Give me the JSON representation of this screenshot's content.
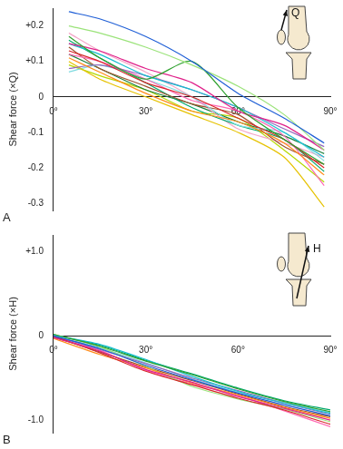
{
  "chart_data": [
    {
      "type": "line",
      "panel_label": "A",
      "force_label": "Q",
      "y_label": "Shear force (×Q)",
      "grid": false,
      "x": [
        5,
        15,
        30,
        45,
        60,
        75,
        88
      ],
      "xlim": [
        0,
        90
      ],
      "xticks": [
        {
          "value": 0,
          "label": "0°"
        },
        {
          "value": 30,
          "label": "30°"
        },
        {
          "value": 60,
          "label": "60°"
        },
        {
          "value": 90,
          "label": "90°"
        }
      ],
      "ylim": [
        -0.32,
        0.25
      ],
      "yticks": [
        {
          "value": 0.2,
          "label": "+0.2"
        },
        {
          "value": 0.1,
          "label": "+0.1"
        },
        0,
        -0.1,
        -0.2,
        -0.3
      ],
      "series": [
        {
          "color": "#1f5fd6",
          "values": [
            0.24,
            0.22,
            0.17,
            0.1,
            0.01,
            -0.06,
            -0.13
          ]
        },
        {
          "color": "#9be37a",
          "values": [
            0.2,
            0.18,
            0.14,
            0.09,
            0.03,
            -0.05,
            -0.15
          ]
        },
        {
          "color": "#2ea02e",
          "values": [
            0.17,
            0.11,
            0.05,
            0.1,
            -0.03,
            -0.12,
            -0.19
          ]
        },
        {
          "color": "#e0218a",
          "values": [
            0.15,
            0.13,
            0.08,
            0.04,
            -0.04,
            -0.08,
            -0.15
          ]
        },
        {
          "color": "#d62728",
          "values": [
            0.13,
            0.1,
            0.04,
            0.0,
            -0.06,
            -0.12,
            -0.2
          ]
        },
        {
          "color": "#ff8c1a",
          "values": [
            0.11,
            0.07,
            0.01,
            -0.04,
            -0.07,
            -0.13,
            -0.22
          ]
        },
        {
          "color": "#17becf",
          "values": [
            0.15,
            0.12,
            0.06,
            0.02,
            -0.03,
            -0.1,
            -0.17
          ]
        },
        {
          "color": "#9467bd",
          "values": [
            0.08,
            0.09,
            0.06,
            0.02,
            -0.03,
            -0.09,
            -0.14
          ]
        },
        {
          "color": "#ff69b4",
          "values": [
            0.12,
            0.1,
            0.05,
            -0.01,
            -0.04,
            -0.11,
            -0.25
          ]
        },
        {
          "color": "#e6c200",
          "values": [
            0.1,
            0.05,
            0.0,
            -0.05,
            -0.1,
            -0.17,
            -0.31
          ]
        },
        {
          "color": "#7fdbe0",
          "values": [
            0.07,
            0.09,
            0.05,
            0.0,
            -0.08,
            -0.1,
            -0.18
          ]
        },
        {
          "color": "#a0522d",
          "values": [
            0.14,
            0.08,
            0.03,
            -0.02,
            -0.05,
            -0.14,
            -0.19
          ]
        },
        {
          "color": "#00a86b",
          "values": [
            0.16,
            0.11,
            0.04,
            -0.03,
            -0.08,
            -0.12,
            -0.21
          ]
        },
        {
          "color": "#f4a6c8",
          "values": [
            0.18,
            0.13,
            0.07,
            0.0,
            -0.09,
            -0.13,
            -0.17
          ]
        },
        {
          "color": "#1b7f3b",
          "values": [
            0.12,
            0.08,
            0.02,
            -0.02,
            -0.07,
            -0.11,
            -0.16
          ]
        },
        {
          "color": "#b5d800",
          "values": [
            0.09,
            0.06,
            0.02,
            -0.04,
            -0.06,
            -0.15,
            -0.24
          ]
        }
      ]
    },
    {
      "type": "line",
      "panel_label": "B",
      "force_label": "H",
      "y_label": "Shear force (×H)",
      "grid": false,
      "x": [
        0,
        15,
        30,
        45,
        60,
        75,
        90
      ],
      "xlim": [
        0,
        90
      ],
      "xticks": [
        {
          "value": 0,
          "label": "0°"
        },
        {
          "value": 30,
          "label": "30°"
        },
        {
          "value": 60,
          "label": "60°"
        },
        {
          "value": 90,
          "label": "90°"
        }
      ],
      "ylim": [
        -1.15,
        1.2
      ],
      "yticks": [
        {
          "value": 1.0,
          "label": "+1.0"
        },
        0,
        {
          "value": -1.0,
          "label": "-1.0"
        }
      ],
      "series": [
        {
          "color": "#1f5fd6",
          "values": [
            0.0,
            -0.15,
            -0.35,
            -0.52,
            -0.68,
            -0.82,
            -0.95
          ]
        },
        {
          "color": "#2ea02e",
          "values": [
            0.02,
            -0.12,
            -0.3,
            -0.46,
            -0.63,
            -0.78,
            -0.9
          ]
        },
        {
          "color": "#e0218a",
          "values": [
            -0.02,
            -0.18,
            -0.4,
            -0.55,
            -0.72,
            -0.86,
            -1.0
          ]
        },
        {
          "color": "#d62728",
          "values": [
            0.0,
            -0.2,
            -0.42,
            -0.58,
            -0.74,
            -0.88,
            -1.05
          ]
        },
        {
          "color": "#17becf",
          "values": [
            0.01,
            -0.1,
            -0.28,
            -0.48,
            -0.66,
            -0.8,
            -0.92
          ]
        },
        {
          "color": "#ff8c1a",
          "values": [
            -0.03,
            -0.22,
            -0.38,
            -0.56,
            -0.7,
            -0.85,
            -0.98
          ]
        },
        {
          "color": "#9467bd",
          "values": [
            0.0,
            -0.16,
            -0.33,
            -0.5,
            -0.65,
            -0.8,
            -0.93
          ]
        },
        {
          "color": "#9be37a",
          "values": [
            0.02,
            -0.13,
            -0.36,
            -0.6,
            -0.75,
            -0.87,
            -1.02
          ]
        },
        {
          "color": "#a0522d",
          "values": [
            -0.01,
            -0.19,
            -0.37,
            -0.53,
            -0.69,
            -0.84,
            -0.96
          ]
        },
        {
          "color": "#7fdbe0",
          "values": [
            0.0,
            -0.14,
            -0.32,
            -0.51,
            -0.67,
            -0.79,
            -0.91
          ]
        },
        {
          "color": "#ff69b4",
          "values": [
            -0.02,
            -0.17,
            -0.41,
            -0.57,
            -0.71,
            -0.89,
            -1.08
          ]
        },
        {
          "color": "#00a86b",
          "values": [
            0.01,
            -0.11,
            -0.29,
            -0.45,
            -0.62,
            -0.77,
            -0.88
          ]
        }
      ]
    }
  ]
}
